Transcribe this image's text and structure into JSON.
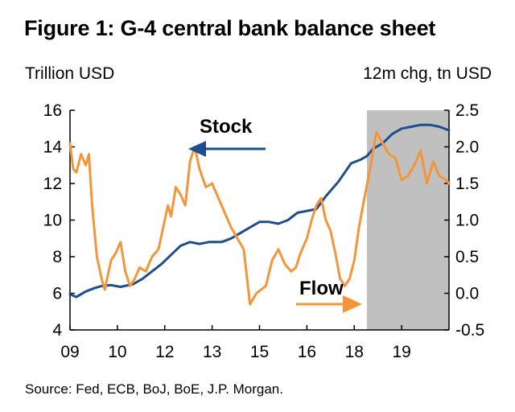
{
  "title": "Figure 1: G-4 central bank balance sheet",
  "left_unit": "Trillion USD",
  "right_unit": "12m chg, tn USD",
  "source": "Source: Fed, ECB, BoJ, BoE, J.P. Morgan.",
  "colors": {
    "stock": "#1f4e8c",
    "flow": "#f5953a",
    "shade": "#c0c0c0"
  },
  "chart_data": {
    "type": "line",
    "title": "Figure 1: G-4 central bank balance sheet",
    "ylabel_left": "Trillion USD",
    "ylabel_right": "12m chg, tn USD",
    "ylim_left": [
      4,
      16
    ],
    "ylim_right": [
      -0.5,
      2.5
    ],
    "xlim": [
      2009.0,
      2021.0
    ],
    "yticks_left": [
      "16",
      "14",
      "12",
      "10",
      "8",
      "6",
      "4"
    ],
    "yticks_right": [
      "2.5",
      "2.0",
      "1.5",
      "1.0",
      "0.5",
      "0.0",
      "-0.5"
    ],
    "xticks": [
      "09",
      "10",
      "12",
      "13",
      "15",
      "16",
      "18",
      "19"
    ],
    "xtick_positions": [
      2009.0,
      2010.5,
      2012.0,
      2013.5,
      2015.0,
      2016.5,
      2018.0,
      2019.5
    ],
    "shaded_region": [
      2018.4,
      2021.0
    ],
    "annotations": [
      "Stock",
      "Flow"
    ],
    "series": [
      {
        "name": "Stock",
        "axis": "left",
        "x": [
          2009.0,
          2009.2,
          2009.5,
          2009.8,
          2010.0,
          2010.3,
          2010.6,
          2011.0,
          2011.3,
          2011.6,
          2011.9,
          2012.2,
          2012.5,
          2012.8,
          2013.1,
          2013.4,
          2013.8,
          2014.1,
          2014.4,
          2014.7,
          2015.0,
          2015.3,
          2015.6,
          2015.9,
          2016.2,
          2016.5,
          2016.8,
          2017.1,
          2017.5,
          2017.9,
          2018.2,
          2018.4,
          2018.6,
          2018.9,
          2019.2,
          2019.5,
          2019.8,
          2020.1,
          2020.4,
          2020.7,
          2021.0
        ],
        "values": [
          5.95,
          5.8,
          6.1,
          6.3,
          6.4,
          6.45,
          6.35,
          6.5,
          6.8,
          7.2,
          7.6,
          8.1,
          8.6,
          8.8,
          8.7,
          8.8,
          8.8,
          9.0,
          9.3,
          9.6,
          9.9,
          9.9,
          9.8,
          10.0,
          10.4,
          10.5,
          10.6,
          11.3,
          12.1,
          13.1,
          13.3,
          13.5,
          13.9,
          14.2,
          14.7,
          15.0,
          15.1,
          15.2,
          15.2,
          15.1,
          14.9
        ]
      },
      {
        "name": "Flow",
        "axis": "right",
        "x": [
          2009.0,
          2009.1,
          2009.2,
          2009.35,
          2009.5,
          2009.6,
          2009.7,
          2009.85,
          2010.0,
          2010.1,
          2010.3,
          2010.45,
          2010.6,
          2010.75,
          2010.9,
          2011.05,
          2011.2,
          2011.4,
          2011.6,
          2011.8,
          2011.95,
          2012.1,
          2012.2,
          2012.35,
          2012.5,
          2012.65,
          2012.8,
          2012.95,
          2013.1,
          2013.3,
          2013.5,
          2013.7,
          2013.9,
          2014.1,
          2014.3,
          2014.5,
          2014.7,
          2014.9,
          2015.05,
          2015.2,
          2015.4,
          2015.6,
          2015.8,
          2016.0,
          2016.15,
          2016.3,
          2016.5,
          2016.65,
          2016.8,
          2016.95,
          2017.1,
          2017.25,
          2017.4,
          2017.55,
          2017.7,
          2017.85,
          2018.0,
          2018.15,
          2018.3,
          2018.5,
          2018.7,
          2018.9,
          2019.1,
          2019.3,
          2019.5,
          2019.7,
          2019.9,
          2020.1,
          2020.3,
          2020.5,
          2020.7,
          2020.9,
          2021.0
        ],
        "values": [
          2.05,
          1.7,
          1.65,
          1.9,
          1.75,
          1.9,
          1.2,
          0.5,
          0.2,
          0.05,
          0.45,
          0.55,
          0.7,
          0.3,
          0.1,
          0.2,
          0.35,
          0.3,
          0.5,
          0.6,
          0.9,
          1.2,
          1.05,
          1.45,
          1.35,
          1.2,
          1.8,
          2.0,
          1.7,
          1.45,
          1.5,
          1.3,
          1.1,
          0.9,
          0.75,
          0.6,
          -0.15,
          0.0,
          0.05,
          0.1,
          0.45,
          0.6,
          0.4,
          0.3,
          0.35,
          0.55,
          0.75,
          1.0,
          1.2,
          1.3,
          1.0,
          0.85,
          0.55,
          0.2,
          0.1,
          0.2,
          0.45,
          0.9,
          1.25,
          1.7,
          2.2,
          2.05,
          1.9,
          1.85,
          1.55,
          1.6,
          1.75,
          1.95,
          1.5,
          1.8,
          1.6,
          1.55,
          1.5
        ]
      }
    ]
  }
}
